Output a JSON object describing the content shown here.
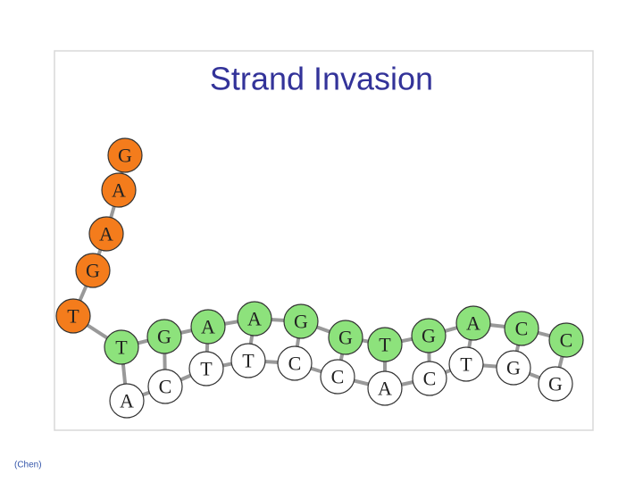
{
  "title": "Strand Invasion",
  "strands": {
    "invading": [
      "T",
      "G",
      "A",
      "A",
      "G"
    ],
    "top": [
      "T",
      "G",
      "A",
      "A",
      "G",
      "G",
      "T",
      "G",
      "A",
      "C",
      "C"
    ],
    "bottom": [
      "A",
      "C",
      "T",
      "T",
      "C",
      "C",
      "A",
      "C",
      "T",
      "G",
      "G"
    ]
  },
  "citation": "(Chen)"
}
